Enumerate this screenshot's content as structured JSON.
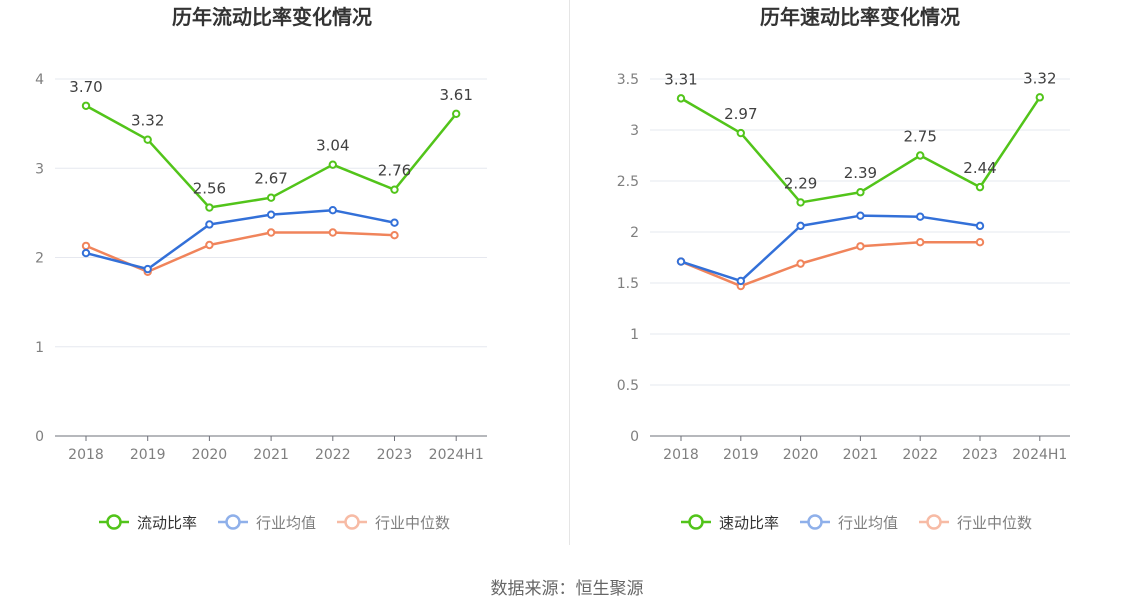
{
  "source": "数据来源：恒生聚源",
  "chart_data": [
    {
      "type": "line",
      "title": "历年流动比率变化情况",
      "categories": [
        "2018",
        "2019",
        "2020",
        "2021",
        "2022",
        "2023",
        "2024H1"
      ],
      "ylim": [
        0,
        4
      ],
      "yticks": [
        0,
        1,
        2,
        3,
        4
      ],
      "ytick_labels": [
        "0",
        "1",
        "2",
        "3",
        "4"
      ],
      "grid": true,
      "legend": "bottom",
      "series": [
        {
          "name": "流动比率",
          "color": "#52c41a",
          "labeled": true,
          "values": [
            3.7,
            3.32,
            2.56,
            2.67,
            3.04,
            2.76,
            3.61
          ],
          "labels": [
            "3.70",
            "3.32",
            "2.56",
            "2.67",
            "3.04",
            "2.76",
            "3.61"
          ]
        },
        {
          "name": "行业均值",
          "color": "#3370d8",
          "labeled": false,
          "values": [
            2.05,
            1.87,
            2.37,
            2.48,
            2.53,
            2.39,
            null
          ]
        },
        {
          "name": "行业中位数",
          "color": "#f0845b",
          "labeled": false,
          "values": [
            2.13,
            1.84,
            2.14,
            2.28,
            2.28,
            2.25,
            null
          ]
        }
      ]
    },
    {
      "type": "line",
      "title": "历年速动比率变化情况",
      "categories": [
        "2018",
        "2019",
        "2020",
        "2021",
        "2022",
        "2023",
        "2024H1"
      ],
      "ylim": [
        0,
        3.5
      ],
      "yticks": [
        0,
        0.5,
        1,
        1.5,
        2,
        2.5,
        3,
        3.5
      ],
      "ytick_labels": [
        "0",
        "0.5",
        "1",
        "1.5",
        "2",
        "2.5",
        "3",
        "3.5"
      ],
      "grid": true,
      "legend": "bottom",
      "series": [
        {
          "name": "速动比率",
          "color": "#52c41a",
          "labeled": true,
          "values": [
            3.31,
            2.97,
            2.29,
            2.39,
            2.75,
            2.44,
            3.32
          ],
          "labels": [
            "3.31",
            "2.97",
            "2.29",
            "2.39",
            "2.75",
            "2.44",
            "3.32"
          ]
        },
        {
          "name": "行业均值",
          "color": "#3370d8",
          "labeled": false,
          "values": [
            1.71,
            1.52,
            2.06,
            2.16,
            2.15,
            2.06,
            null
          ]
        },
        {
          "name": "行业中位数",
          "color": "#f0845b",
          "labeled": false,
          "values": [
            1.71,
            1.47,
            1.69,
            1.86,
            1.9,
            1.9,
            null
          ]
        }
      ]
    }
  ]
}
